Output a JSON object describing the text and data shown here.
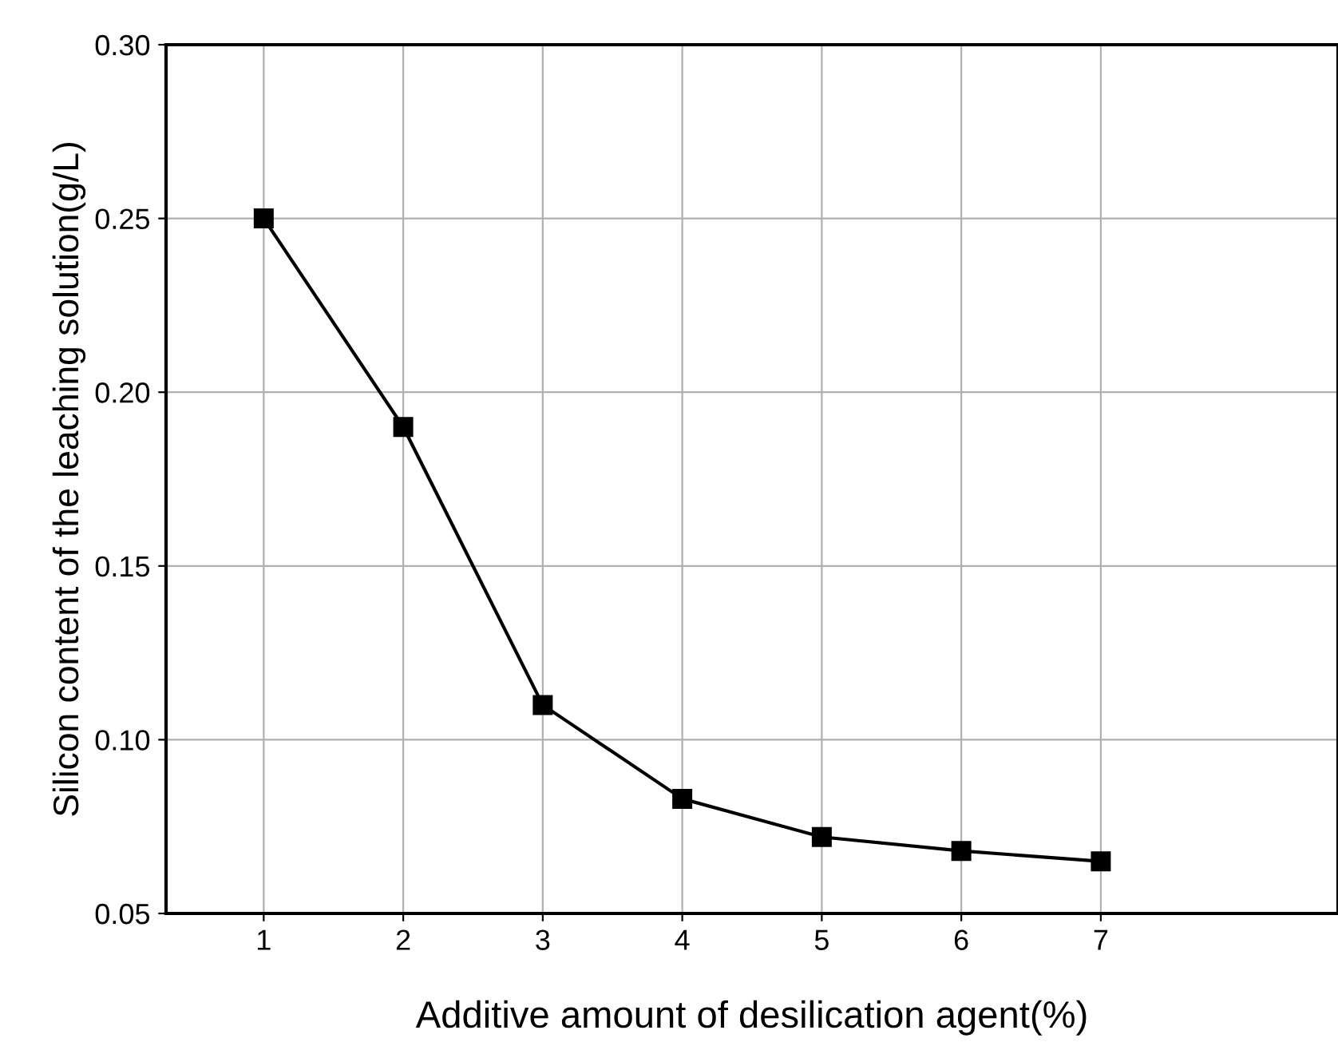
{
  "chart_data": {
    "type": "line",
    "xlabel": "Additive amount of desilication agent(%)",
    "ylabel": "Silicon content of the leaching solution(g/L)",
    "x": [
      1,
      2,
      3,
      4,
      5,
      6,
      7
    ],
    "series": [
      {
        "color": "#000000",
        "values": [
          0.25,
          0.19,
          0.11,
          0.083,
          0.072,
          0.068,
          0.065
        ]
      }
    ],
    "xlim": [
      0.3,
      8.7
    ],
    "xticks": [
      1,
      2,
      3,
      4,
      5,
      6,
      7
    ],
    "ylim": [
      0.05,
      0.3
    ],
    "yticks": [
      {
        "value": 0.05,
        "label": "0.05"
      },
      {
        "value": 0.1,
        "label": "0.10"
      },
      {
        "value": 0.15,
        "label": "0.15"
      },
      {
        "value": 0.2,
        "label": "0.20"
      },
      {
        "value": 0.25,
        "label": "0.25"
      },
      {
        "value": 0.3,
        "label": "0.30"
      }
    ],
    "grid": true,
    "marker": "square",
    "line_style": "solid",
    "legend": false
  }
}
